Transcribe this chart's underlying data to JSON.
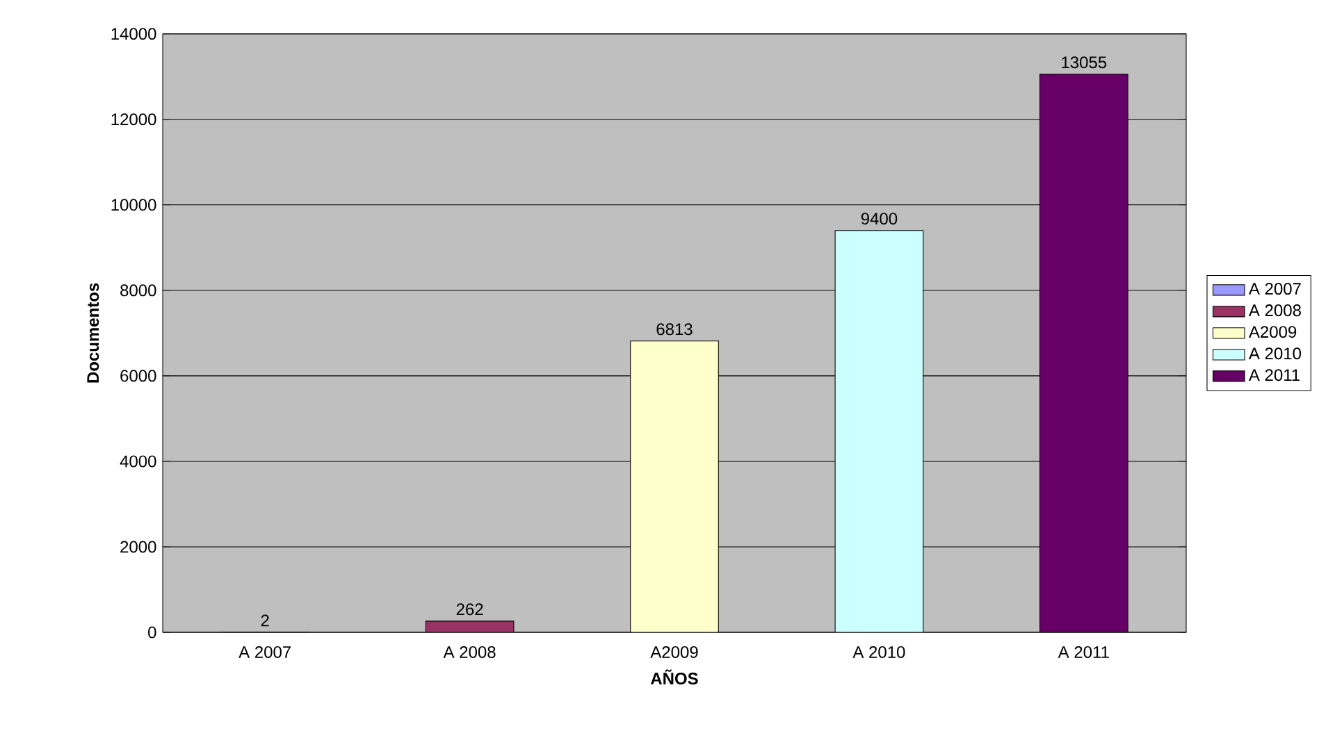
{
  "chart_data": {
    "type": "bar",
    "xlabel": "AÑOS",
    "ylabel": "Documentos",
    "categories": [
      "A 2007",
      "A 2008",
      "A2009",
      "A 2010",
      "A 2011"
    ],
    "series": [
      {
        "name": "A 2007",
        "color": "#9999ff",
        "values": [
          2,
          null,
          null,
          null,
          null
        ]
      },
      {
        "name": "A 2008",
        "color": "#993366",
        "values": [
          null,
          262,
          null,
          null,
          null
        ]
      },
      {
        "name": "A2009",
        "color": "#ffffcc",
        "values": [
          null,
          null,
          6813,
          null,
          null
        ]
      },
      {
        "name": "A 2010",
        "color": "#ccffff",
        "values": [
          null,
          null,
          null,
          9400,
          null
        ]
      },
      {
        "name": "A 2011",
        "color": "#660066",
        "values": [
          null,
          null,
          null,
          null,
          13055
        ]
      }
    ],
    "ylim": [
      0,
      14000
    ],
    "yticks": [
      0,
      2000,
      4000,
      6000,
      8000,
      10000,
      12000,
      14000
    ],
    "grid": "y",
    "legend": "right",
    "data_labels": true
  }
}
